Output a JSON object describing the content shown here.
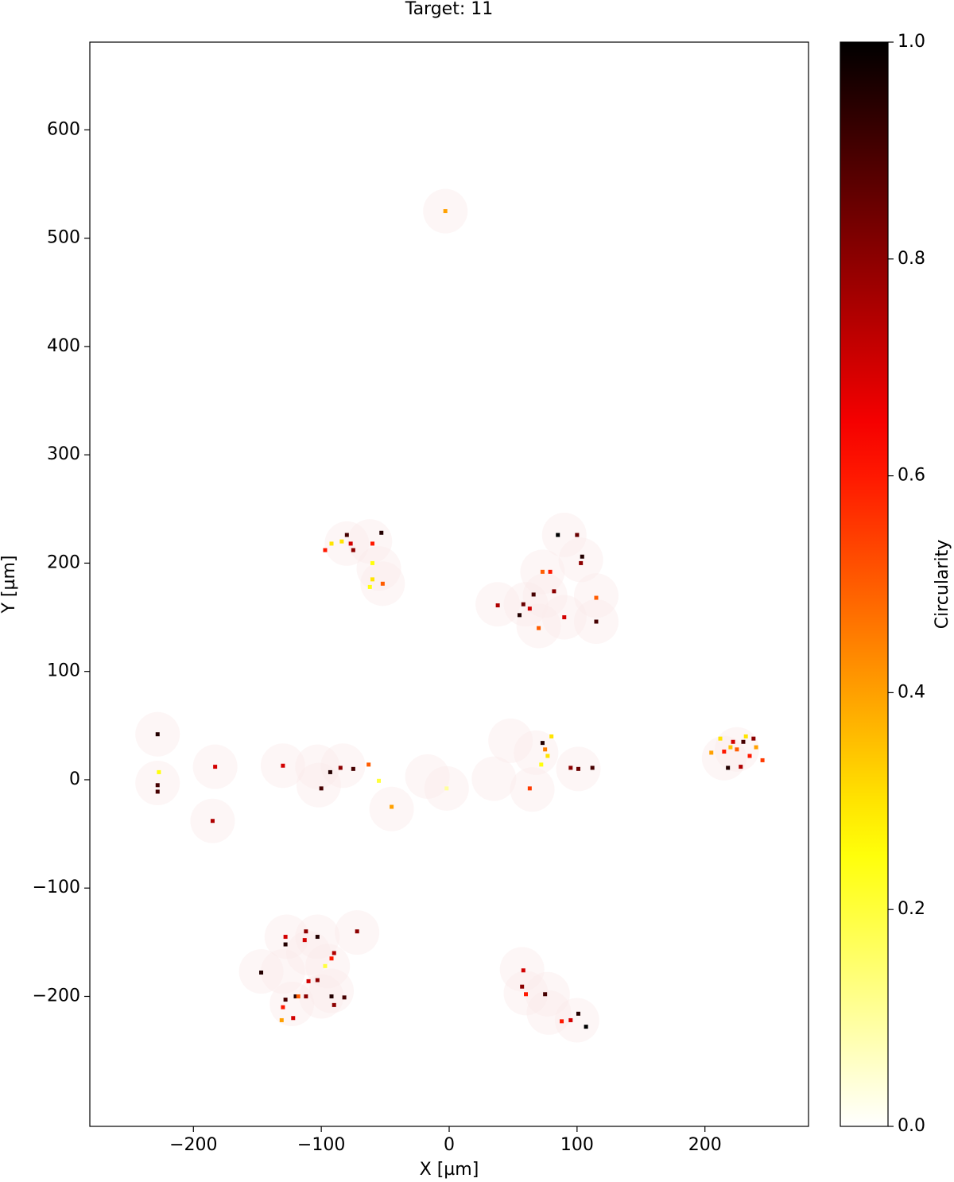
{
  "chart_data": {
    "type": "scatter",
    "title": "Target: 11",
    "xlabel": "X [µm]",
    "ylabel": "Y [µm]",
    "xlim": [
      -281,
      281
    ],
    "ylim": [
      -320,
      681
    ],
    "xticks": [
      {
        "value": -200,
        "label": "−200"
      },
      {
        "value": -100,
        "label": "−100"
      },
      0,
      100,
      200
    ],
    "yticks": [
      {
        "value": -200,
        "label": "−200"
      },
      {
        "value": -100,
        "label": "−100"
      },
      0,
      100,
      200,
      300,
      400,
      500,
      600
    ],
    "colorbar": {
      "label": "Circularity",
      "lim": [
        0,
        1
      ],
      "colormap": "hot_r",
      "ticks": [
        {
          "value": 0,
          "label": "0.0"
        },
        0.2,
        0.4,
        0.6,
        0.8,
        {
          "value": 1,
          "label": "1.0"
        }
      ]
    },
    "regions": {
      "x": [
        -3,
        -228,
        -228,
        -183,
        -185,
        -130,
        -103,
        -102,
        -83,
        -17,
        -2,
        -45,
        35,
        48,
        68,
        65,
        101,
        225,
        215,
        -80,
        -62,
        -55,
        -52,
        38,
        60,
        73,
        70,
        90,
        90,
        103,
        115,
        115,
        75,
        -147,
        -127,
        -130,
        -123,
        -110,
        -103,
        -95,
        -92,
        -72,
        -100,
        57,
        60,
        77,
        78,
        100
      ],
      "y": [
        525,
        42,
        -3,
        12,
        -38,
        13,
        12,
        -5,
        13,
        3,
        -8,
        -27,
        1,
        36,
        25,
        -9,
        10,
        28,
        20,
        218,
        220,
        195,
        181,
        162,
        162,
        192,
        142,
        150,
        226,
        203,
        170,
        146,
        170,
        -177,
        -145,
        -177,
        -207,
        -160,
        -145,
        -172,
        -195,
        -141,
        -200,
        -175,
        -197,
        -198,
        -215,
        -222
      ]
    },
    "particles": {
      "x": [
        -3,
        -228,
        -227,
        -228,
        -228,
        -183,
        -185,
        -130,
        -100,
        -93,
        -85,
        -75,
        -63,
        -45,
        -55,
        -2,
        73,
        80,
        77,
        72,
        75,
        63,
        95,
        101,
        112,
        -80,
        -84,
        -75,
        -77,
        -60,
        -53,
        -60,
        -60,
        -62,
        -52,
        -97,
        -92,
        38,
        55,
        58,
        63,
        73,
        79,
        66,
        82,
        90,
        85,
        100,
        103,
        104,
        115,
        115,
        70,
        -147,
        -128,
        -128,
        -112,
        -113,
        -103,
        -90,
        -92,
        -97,
        -103,
        -110,
        -120,
        -128,
        -130,
        -131,
        -122,
        -112,
        -118,
        -92,
        -90,
        -82,
        -72,
        58,
        57,
        60,
        75,
        95,
        101,
        107,
        88,
        205,
        212,
        215,
        220,
        225,
        230,
        235,
        222,
        228,
        218,
        240,
        245,
        232,
        238
      ],
      "y": [
        525,
        42,
        7,
        -5,
        -11,
        12,
        -38,
        13,
        -8,
        7,
        11,
        10,
        14,
        -25,
        -1,
        -8,
        34,
        40,
        22,
        14,
        28,
        -8,
        11,
        10,
        11,
        226,
        220,
        212,
        218,
        218,
        228,
        200,
        185,
        178,
        181,
        212,
        218,
        161,
        152,
        162,
        158,
        192,
        192,
        171,
        174,
        150,
        226,
        226,
        200,
        206,
        168,
        146,
        140,
        -178,
        -145,
        -152,
        -140,
        -148,
        -145,
        -160,
        -165,
        -172,
        -185,
        -186,
        -200,
        -203,
        -210,
        -222,
        -220,
        -200,
        -200,
        -200,
        -208,
        -201,
        -140,
        -176,
        -191,
        -198,
        -198,
        -222,
        -216,
        -228,
        -223,
        25,
        38,
        26,
        30,
        28,
        35,
        22,
        35,
        12,
        11,
        30,
        18,
        40,
        38
      ],
      "values": [
        0.4,
        0.95,
        0.25,
        0.9,
        0.9,
        0.7,
        0.75,
        0.7,
        0.9,
        0.95,
        0.8,
        0.9,
        0.5,
        0.4,
        0.2,
        0.1,
        0.95,
        0.3,
        0.3,
        0.25,
        0.45,
        0.55,
        0.8,
        0.85,
        0.9,
        0.9,
        0.3,
        0.8,
        0.7,
        0.6,
        0.95,
        0.25,
        0.3,
        0.25,
        0.5,
        0.6,
        0.3,
        0.75,
        0.95,
        0.85,
        0.7,
        0.5,
        0.6,
        0.9,
        0.8,
        0.7,
        1.0,
        0.85,
        0.8,
        0.95,
        0.5,
        0.9,
        0.5,
        0.95,
        0.7,
        0.95,
        0.8,
        0.7,
        0.95,
        0.75,
        0.6,
        0.2,
        0.8,
        0.7,
        0.95,
        0.9,
        0.6,
        0.4,
        0.7,
        0.8,
        0.5,
        0.95,
        0.8,
        0.9,
        0.8,
        0.7,
        0.8,
        0.6,
        0.9,
        0.7,
        0.95,
        1.0,
        0.6,
        0.4,
        0.3,
        0.6,
        0.35,
        0.5,
        0.9,
        0.6,
        0.7,
        0.75,
        0.95,
        0.4,
        0.55,
        0.3,
        0.8
      ]
    }
  }
}
